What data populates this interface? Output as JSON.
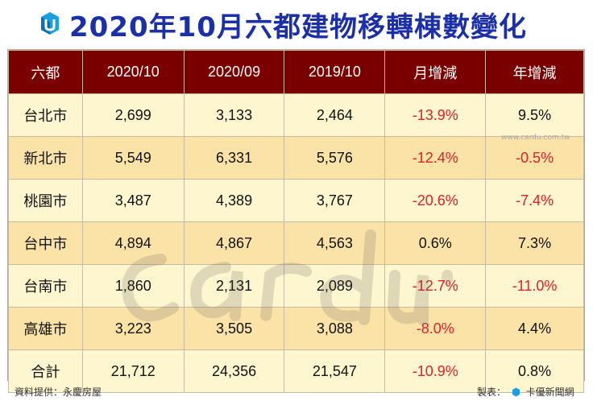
{
  "header": {
    "title": "2020年10月六都建物移轉棟數變化",
    "logo_icon": "cardu-logo-icon"
  },
  "colors": {
    "title": "#1a2fa8",
    "header_bg": "#7a0000",
    "row_light": "#fdf6cf",
    "row_dark": "#fbe3a8",
    "negative": "#e0202a"
  },
  "watermark": {
    "site_url": "www.cardu.com.tw"
  },
  "chart_data": {
    "type": "table",
    "columns": [
      "六都",
      "2020/10",
      "2020/09",
      "2019/10",
      "月增減",
      "年增減"
    ],
    "rows": [
      [
        "台北市",
        "2,699",
        "3,133",
        "2,464",
        "-13.9%",
        "9.5%"
      ],
      [
        "新北市",
        "5,549",
        "6,331",
        "5,576",
        "-12.4%",
        "-0.5%"
      ],
      [
        "桃園市",
        "3,487",
        "4,389",
        "3,767",
        "-20.6%",
        "-7.4%"
      ],
      [
        "台中市",
        "4,894",
        "4,867",
        "4,563",
        "0.6%",
        "7.3%"
      ],
      [
        "台南市",
        "1,860",
        "2,131",
        "2,089",
        "-12.7%",
        "-11.0%"
      ],
      [
        "高雄市",
        "3,223",
        "3,505",
        "3,088",
        "-8.0%",
        "4.4%"
      ],
      [
        "合計",
        "21,712",
        "24,356",
        "21,547",
        "-10.9%",
        "0.8%"
      ]
    ]
  },
  "footer": {
    "source": "資料提供：永慶房屋",
    "producer_label": "製表：",
    "producer_name": "卡優新聞網"
  }
}
